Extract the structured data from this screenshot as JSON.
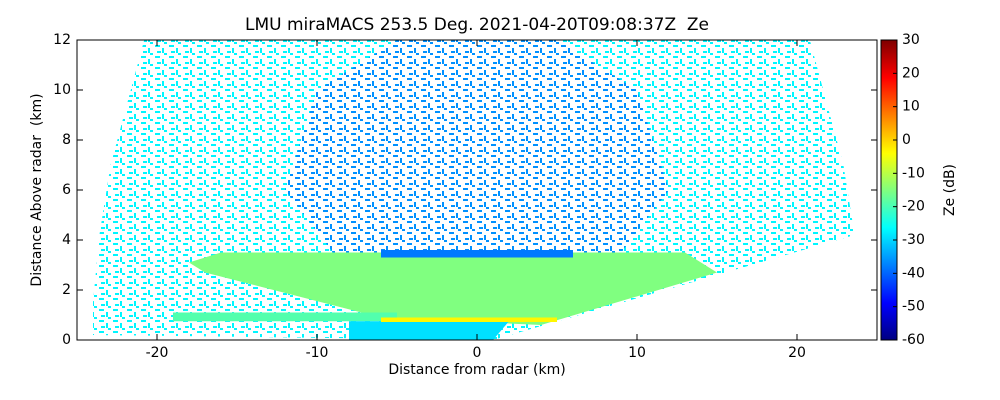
{
  "chart_data": {
    "type": "radar-scan",
    "title": "LMU miraMACS 253.5 Deg. 2021-04-20T09:08:37Z  Ze",
    "xlabel": "Distance from radar (km)",
    "ylabel": "Distance Above radar  (km)",
    "colorbar_label": "Ze (dB)",
    "colormap": "jet",
    "xlim": [
      -25,
      25
    ],
    "ylim": [
      0,
      12
    ],
    "xticks": [
      -20,
      -10,
      0,
      10,
      20
    ],
    "yticks": [
      0,
      2,
      4,
      6,
      8,
      10,
      12
    ],
    "clim": [
      -60,
      30
    ],
    "cticks": [
      -60,
      -50,
      -40,
      -30,
      -20,
      -10,
      0,
      10,
      20,
      30
    ],
    "regions": [
      {
        "value": -27,
        "texture": "speckle",
        "points": [
          [
            23.6,
            4.2
          ],
          [
            22.9,
            7.0
          ],
          [
            20.8,
            12
          ],
          [
            -20.8,
            12
          ],
          [
            -22.9,
            7.0
          ],
          [
            -23.6,
            4.2
          ],
          [
            -24,
            1.5
          ],
          [
            -24,
            0.2
          ],
          [
            1,
            0
          ],
          [
            23.6,
            4.2
          ]
        ]
      },
      {
        "value": -36,
        "texture": "speckle",
        "points": [
          [
            -9,
            3.5
          ],
          [
            -12,
            6
          ],
          [
            -10,
            10
          ],
          [
            -5,
            12
          ],
          [
            5,
            12
          ],
          [
            10,
            10
          ],
          [
            12,
            6
          ],
          [
            9,
            3.5
          ]
        ]
      },
      {
        "value": -15,
        "points": [
          [
            -18,
            3.1
          ],
          [
            -16,
            3.5
          ],
          [
            13,
            3.5
          ],
          [
            15,
            2.7
          ],
          [
            4,
            0.6
          ],
          [
            -6,
            0.9
          ],
          [
            -17,
            2.7
          ]
        ]
      },
      {
        "value": -38,
        "points": [
          [
            -6,
            3.3
          ],
          [
            6,
            3.3
          ],
          [
            6,
            3.6
          ],
          [
            -6,
            3.6
          ]
        ]
      },
      {
        "value": -19,
        "points": [
          [
            -19,
            0.75
          ],
          [
            -19,
            1.1
          ],
          [
            -5,
            1.1
          ],
          [
            -5,
            0.75
          ]
        ]
      },
      {
        "value": -29,
        "points": [
          [
            -8,
            0
          ],
          [
            -8,
            0.75
          ],
          [
            2,
            0.75
          ],
          [
            1,
            0
          ]
        ]
      },
      {
        "value": -3,
        "points": [
          [
            -6,
            0.72
          ],
          [
            -6,
            0.9
          ],
          [
            5,
            0.9
          ],
          [
            5,
            0.72
          ]
        ]
      }
    ]
  }
}
